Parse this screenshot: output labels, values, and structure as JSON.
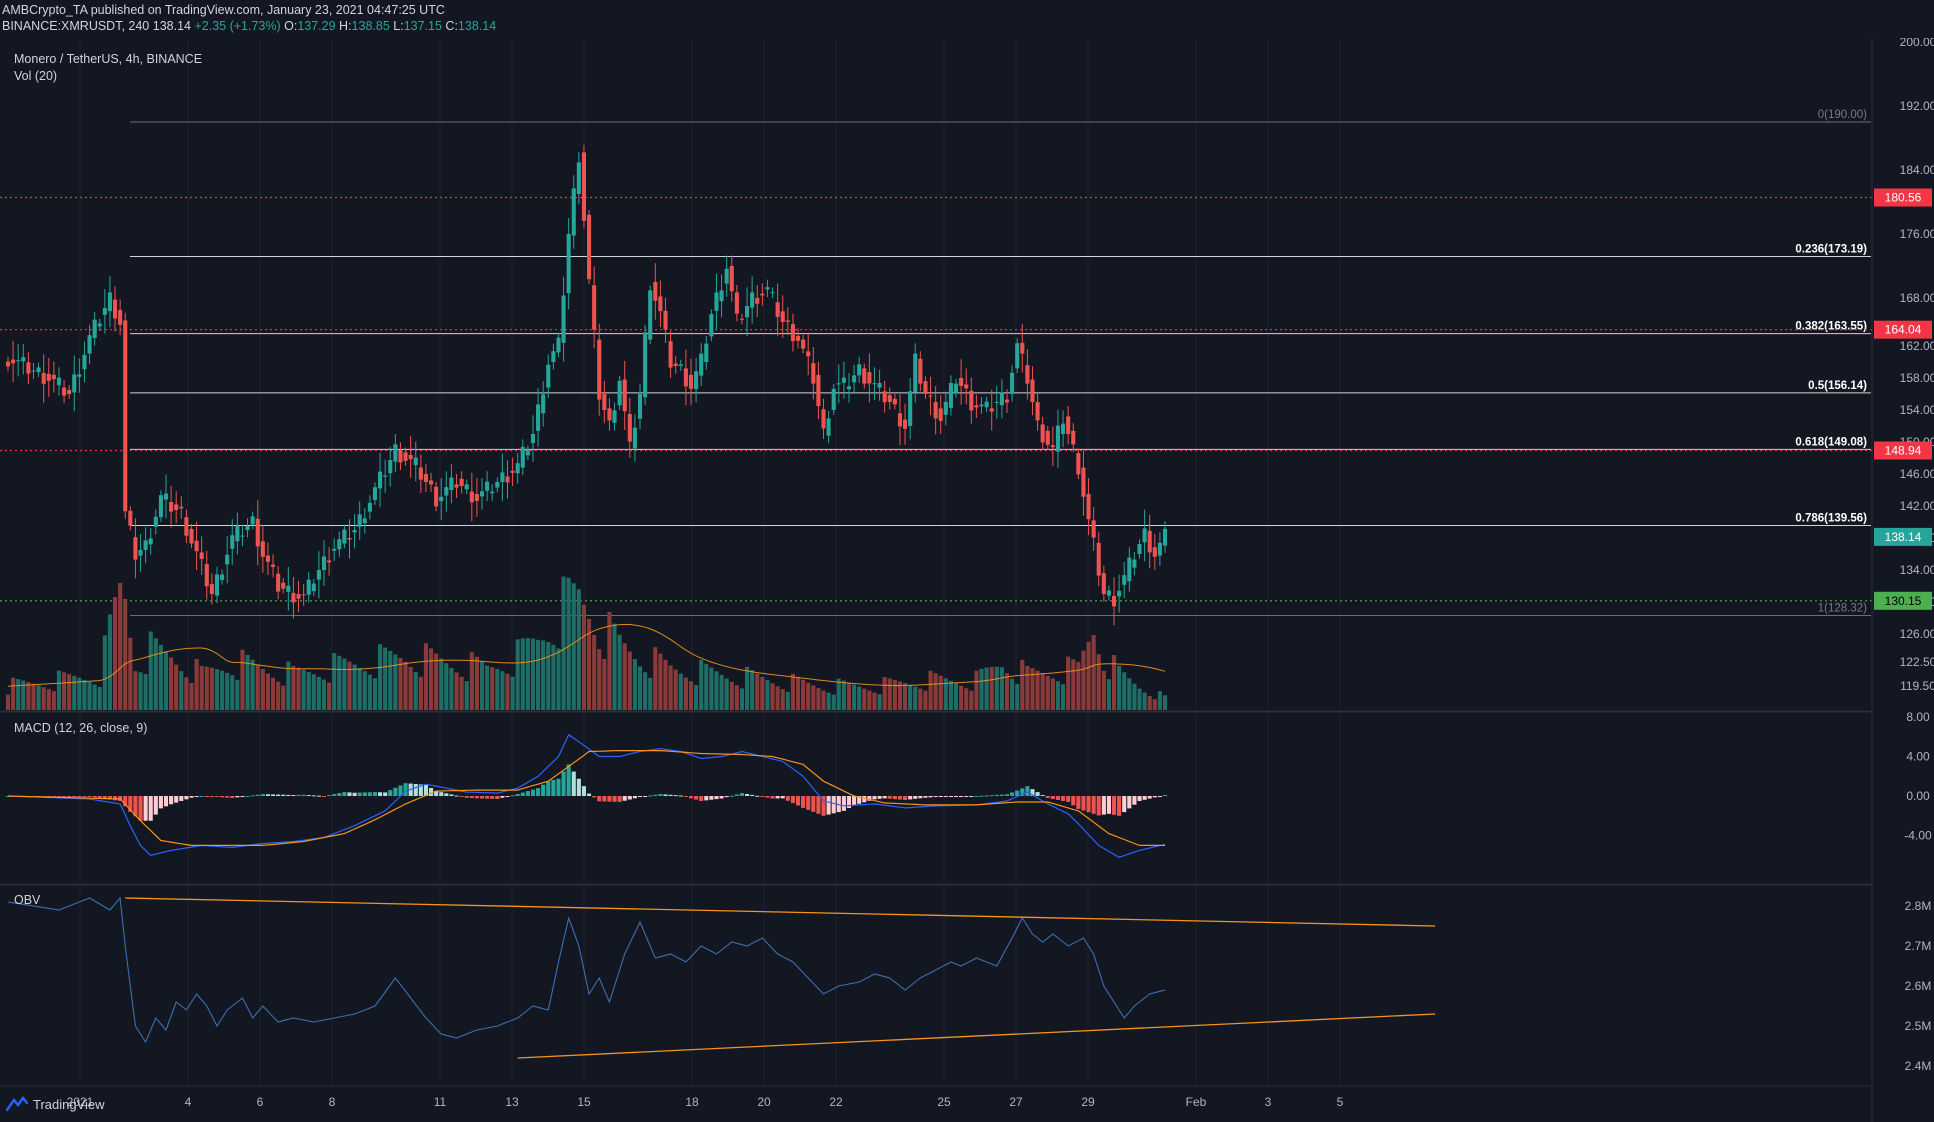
{
  "header": {
    "publisher": "AMBCrypto_TA",
    "published_on": "published on TradingView.com, January 23, 2021 04:47:25 UTC",
    "symbol": "BINANCE:XMRUSDT, 240",
    "last": "138.14",
    "change": "+2.35 (+1.73%)",
    "o_label": "O:",
    "o": "137.29",
    "h_label": "H:",
    "h": "138.85",
    "l_label": "L:",
    "l": "137.15",
    "c_label": "C:",
    "c": "138.14"
  },
  "legend": {
    "main": "Monero / TetherUS, 4h, BINANCE",
    "vol": "Vol (20)",
    "macd": "MACD (12, 26, close, 9)",
    "obv": "OBV"
  },
  "brand": "TradingView",
  "colors": {
    "bg": "#131722",
    "grid": "#1e2230",
    "up": "#26a69a",
    "down": "#ef5350",
    "vol_up": "#1e6e66",
    "vol_down": "#8b3a3a",
    "orange": "#f7931a",
    "blue": "#2962ff",
    "red_level": "#f23645",
    "green_level": "#4caf50",
    "fib": "#b2b5be"
  },
  "chart_data": [
    {
      "type": "candlestick",
      "title": "Monero / TetherUS, 4h, BINANCE",
      "x_axis_ticks": [
        "2021",
        "4",
        "6",
        "8",
        "11",
        "13",
        "15",
        "18",
        "20",
        "22",
        "25",
        "27",
        "29",
        "Feb",
        "3",
        "5"
      ],
      "y_ticks": [
        "200.00",
        "192.00",
        "184.00",
        "176.00",
        "168.00",
        "162.00",
        "158.00",
        "154.00",
        "150.00",
        "146.00",
        "142.00",
        "138.00",
        "134.00",
        "130.00",
        "126.00",
        "122.50",
        "119.50"
      ],
      "ylim": [
        116.5,
        200.5
      ],
      "last_price": "138.14",
      "price_levels": [
        {
          "value": 180.56,
          "label": "180.56",
          "style": "red-dotted"
        },
        {
          "value": 164.04,
          "label": "164.04",
          "style": "red-dotted"
        },
        {
          "value": 148.94,
          "label": "148.94",
          "style": "red-dotted"
        },
        {
          "value": 130.15,
          "label": "130.15",
          "style": "green-dotted"
        }
      ],
      "fibonacci": [
        {
          "ratio": "0",
          "value": 190.0,
          "label": "0(190.00)"
        },
        {
          "ratio": "0.236",
          "value": 173.19,
          "label": "0.236(173.19)"
        },
        {
          "ratio": "0.382",
          "value": 163.55,
          "label": "0.382(163.55)"
        },
        {
          "ratio": "0.5",
          "value": 156.14,
          "label": "0.5(156.14)"
        },
        {
          "ratio": "0.618",
          "value": 149.08,
          "label": "0.618(149.08)"
        },
        {
          "ratio": "0.786",
          "value": 139.56,
          "label": "0.786(139.56)"
        },
        {
          "ratio": "1",
          "value": 128.32,
          "label": "1(128.32)"
        }
      ],
      "close_path": [
        [
          0,
          160.5
        ],
        [
          8,
          158
        ],
        [
          12,
          156
        ],
        [
          16,
          163
        ],
        [
          20,
          168
        ],
        [
          22,
          165
        ],
        [
          23,
          141
        ],
        [
          25,
          136
        ],
        [
          27,
          137
        ],
        [
          30,
          143
        ],
        [
          34,
          141
        ],
        [
          37,
          136
        ],
        [
          40,
          131
        ],
        [
          44,
          138
        ],
        [
          48,
          140
        ],
        [
          50,
          136
        ],
        [
          53,
          132
        ],
        [
          56,
          131
        ],
        [
          58,
          130.5
        ],
        [
          60,
          133
        ],
        [
          64,
          137
        ],
        [
          68,
          139
        ],
        [
          72,
          144
        ],
        [
          76,
          149
        ],
        [
          80,
          147
        ],
        [
          84,
          143
        ],
        [
          88,
          145
        ],
        [
          92,
          143
        ],
        [
          96,
          145
        ],
        [
          100,
          147
        ],
        [
          103,
          151
        ],
        [
          106,
          160
        ],
        [
          108,
          162
        ],
        [
          110,
          176
        ],
        [
          112,
          186
        ],
        [
          114,
          170
        ],
        [
          116,
          156
        ],
        [
          118,
          152
        ],
        [
          120,
          158
        ],
        [
          122,
          149
        ],
        [
          124,
          156
        ],
        [
          126,
          170
        ],
        [
          128,
          166
        ],
        [
          130,
          160
        ],
        [
          132,
          159
        ],
        [
          134,
          157
        ],
        [
          136,
          160
        ],
        [
          138,
          166
        ],
        [
          141,
          172
        ],
        [
          143,
          165
        ],
        [
          146,
          168
        ],
        [
          149,
          169
        ],
        [
          152,
          165
        ],
        [
          155,
          163
        ],
        [
          158,
          158
        ],
        [
          160,
          151
        ],
        [
          162,
          157
        ],
        [
          164,
          157
        ],
        [
          167,
          159
        ],
        [
          170,
          157
        ],
        [
          173,
          155
        ],
        [
          176,
          152
        ],
        [
          178,
          160
        ],
        [
          180,
          156
        ],
        [
          183,
          153
        ],
        [
          186,
          158
        ],
        [
          189,
          155
        ],
        [
          192,
          154
        ],
        [
          196,
          156
        ],
        [
          198,
          162
        ],
        [
          200,
          158
        ],
        [
          202,
          152
        ],
        [
          205,
          149
        ],
        [
          207,
          153
        ],
        [
          210,
          147
        ],
        [
          212,
          140
        ],
        [
          214,
          134
        ],
        [
          215,
          131
        ],
        [
          217,
          130.5
        ],
        [
          219,
          133
        ],
        [
          221,
          136
        ],
        [
          223,
          138.5
        ],
        [
          225,
          136
        ],
        [
          227,
          138.1
        ]
      ],
      "volume_path": [
        [
          0,
          0.2
        ],
        [
          10,
          0.25
        ],
        [
          18,
          0.3
        ],
        [
          22,
          1.0
        ],
        [
          23,
          0.95
        ],
        [
          25,
          0.4
        ],
        [
          28,
          0.5
        ],
        [
          32,
          0.45
        ],
        [
          38,
          0.3
        ],
        [
          44,
          0.4
        ],
        [
          50,
          0.35
        ],
        [
          56,
          0.3
        ],
        [
          62,
          0.35
        ],
        [
          70,
          0.4
        ],
        [
          78,
          0.45
        ],
        [
          86,
          0.4
        ],
        [
          94,
          0.35
        ],
        [
          100,
          0.45
        ],
        [
          104,
          0.6
        ],
        [
          108,
          0.8
        ],
        [
          110,
          0.9
        ],
        [
          112,
          0.95
        ],
        [
          114,
          0.85
        ],
        [
          116,
          0.7
        ],
        [
          120,
          0.55
        ],
        [
          124,
          0.45
        ],
        [
          130,
          0.35
        ],
        [
          140,
          0.3
        ],
        [
          150,
          0.25
        ],
        [
          160,
          0.2
        ],
        [
          170,
          0.2
        ],
        [
          180,
          0.25
        ],
        [
          190,
          0.25
        ],
        [
          195,
          0.4
        ],
        [
          200,
          0.3
        ],
        [
          210,
          0.35
        ],
        [
          213,
          0.7
        ],
        [
          215,
          0.45
        ],
        [
          218,
          0.3
        ],
        [
          222,
          0.2
        ],
        [
          227,
          0.1
        ]
      ],
      "series": [
        {
          "name": "Vol (20)",
          "type": "volume"
        }
      ]
    },
    {
      "type": "line",
      "title": "MACD (12, 26, close, 9)",
      "y_ticks": [
        "8.00",
        "4.00",
        "0.00",
        "-4.00"
      ],
      "ylim": [
        -8.8,
        8.4
      ],
      "macd_path": [
        [
          0,
          0
        ],
        [
          16,
          -0.3
        ],
        [
          22,
          -0.8
        ],
        [
          24,
          -3
        ],
        [
          26,
          -5
        ],
        [
          28,
          -6
        ],
        [
          32,
          -5.5
        ],
        [
          38,
          -5
        ],
        [
          44,
          -5.2
        ],
        [
          50,
          -4.8
        ],
        [
          56,
          -4.6
        ],
        [
          62,
          -4.2
        ],
        [
          68,
          -3
        ],
        [
          74,
          -1.5
        ],
        [
          78,
          0.5
        ],
        [
          82,
          1.2
        ],
        [
          86,
          0.8
        ],
        [
          90,
          0.4
        ],
        [
          96,
          0.3
        ],
        [
          100,
          0.8
        ],
        [
          104,
          2
        ],
        [
          108,
          4
        ],
        [
          110,
          6.2
        ],
        [
          112,
          5.5
        ],
        [
          116,
          4
        ],
        [
          120,
          4
        ],
        [
          124,
          4.5
        ],
        [
          128,
          4.8
        ],
        [
          132,
          4.5
        ],
        [
          136,
          3.8
        ],
        [
          140,
          4
        ],
        [
          144,
          4.5
        ],
        [
          148,
          4
        ],
        [
          152,
          3.5
        ],
        [
          156,
          2
        ],
        [
          160,
          -0.5
        ],
        [
          164,
          -1
        ],
        [
          170,
          -0.8
        ],
        [
          176,
          -1.2
        ],
        [
          182,
          -1
        ],
        [
          190,
          -0.9
        ],
        [
          196,
          -0.5
        ],
        [
          200,
          0.4
        ],
        [
          204,
          -0.8
        ],
        [
          208,
          -1.8
        ],
        [
          210,
          -2.8
        ],
        [
          214,
          -5
        ],
        [
          218,
          -6.2
        ],
        [
          222,
          -5.5
        ],
        [
          227,
          -4.9
        ]
      ],
      "signal_path": [
        [
          0,
          0
        ],
        [
          22,
          -0.3
        ],
        [
          26,
          -2.5
        ],
        [
          30,
          -4.5
        ],
        [
          36,
          -5
        ],
        [
          42,
          -5
        ],
        [
          50,
          -5
        ],
        [
          58,
          -4.6
        ],
        [
          66,
          -3.8
        ],
        [
          72,
          -2.4
        ],
        [
          78,
          -0.8
        ],
        [
          84,
          0.5
        ],
        [
          92,
          0.6
        ],
        [
          100,
          0.6
        ],
        [
          106,
          1.5
        ],
        [
          110,
          3
        ],
        [
          114,
          4.5
        ],
        [
          120,
          4.6
        ],
        [
          128,
          4.6
        ],
        [
          136,
          4.3
        ],
        [
          144,
          4.2
        ],
        [
          150,
          4
        ],
        [
          156,
          3.2
        ],
        [
          160,
          1.5
        ],
        [
          166,
          0
        ],
        [
          172,
          -0.7
        ],
        [
          180,
          -0.9
        ],
        [
          190,
          -0.9
        ],
        [
          198,
          -0.6
        ],
        [
          204,
          -0.6
        ],
        [
          210,
          -1.5
        ],
        [
          216,
          -3.8
        ],
        [
          222,
          -5
        ],
        [
          227,
          -5
        ]
      ],
      "series": [
        {
          "name": "MACD",
          "type": "line"
        },
        {
          "name": "Signal",
          "type": "line"
        },
        {
          "name": "Histogram",
          "type": "bar"
        }
      ]
    },
    {
      "type": "line",
      "title": "OBV",
      "y_ticks": [
        "2.8M",
        "2.7M",
        "2.6M",
        "2.5M",
        "2.4M"
      ],
      "ylim": [
        2.35,
        2.85
      ],
      "obv_path": [
        [
          0,
          2.81
        ],
        [
          10,
          2.79
        ],
        [
          16,
          2.82
        ],
        [
          20,
          2.79
        ],
        [
          22,
          2.82
        ],
        [
          23,
          2.7
        ],
        [
          25,
          2.5
        ],
        [
          27,
          2.46
        ],
        [
          29,
          2.52
        ],
        [
          31,
          2.49
        ],
        [
          33,
          2.56
        ],
        [
          35,
          2.54
        ],
        [
          37,
          2.58
        ],
        [
          39,
          2.55
        ],
        [
          41,
          2.5
        ],
        [
          43,
          2.54
        ],
        [
          46,
          2.57
        ],
        [
          48,
          2.52
        ],
        [
          50,
          2.55
        ],
        [
          53,
          2.51
        ],
        [
          56,
          2.52
        ],
        [
          60,
          2.51
        ],
        [
          64,
          2.52
        ],
        [
          68,
          2.53
        ],
        [
          72,
          2.55
        ],
        [
          76,
          2.62
        ],
        [
          79,
          2.57
        ],
        [
          82,
          2.52
        ],
        [
          85,
          2.48
        ],
        [
          88,
          2.47
        ],
        [
          92,
          2.49
        ],
        [
          96,
          2.5
        ],
        [
          100,
          2.52
        ],
        [
          103,
          2.55
        ],
        [
          106,
          2.54
        ],
        [
          108,
          2.66
        ],
        [
          110,
          2.77
        ],
        [
          112,
          2.7
        ],
        [
          114,
          2.58
        ],
        [
          116,
          2.62
        ],
        [
          118,
          2.56
        ],
        [
          121,
          2.68
        ],
        [
          124,
          2.76
        ],
        [
          127,
          2.67
        ],
        [
          130,
          2.68
        ],
        [
          133,
          2.66
        ],
        [
          136,
          2.7
        ],
        [
          139,
          2.68
        ],
        [
          142,
          2.71
        ],
        [
          145,
          2.7
        ],
        [
          148,
          2.72
        ],
        [
          151,
          2.68
        ],
        [
          154,
          2.66
        ],
        [
          157,
          2.62
        ],
        [
          160,
          2.58
        ],
        [
          163,
          2.6
        ],
        [
          167,
          2.61
        ],
        [
          170,
          2.63
        ],
        [
          173,
          2.62
        ],
        [
          176,
          2.59
        ],
        [
          179,
          2.62
        ],
        [
          182,
          2.64
        ],
        [
          185,
          2.66
        ],
        [
          187,
          2.65
        ],
        [
          190,
          2.67
        ],
        [
          194,
          2.65
        ],
        [
          197,
          2.72
        ],
        [
          199,
          2.77
        ],
        [
          201,
          2.73
        ],
        [
          203,
          2.71
        ],
        [
          205,
          2.73
        ],
        [
          208,
          2.7
        ],
        [
          211,
          2.72
        ],
        [
          213,
          2.68
        ],
        [
          215,
          2.6
        ],
        [
          217,
          2.56
        ],
        [
          219,
          2.52
        ],
        [
          221,
          2.55
        ],
        [
          224,
          2.58
        ],
        [
          227,
          2.59
        ]
      ],
      "trendlines": [
        {
          "from": [
            23,
            2.82
          ],
          "to": [
            280,
            2.75
          ]
        },
        {
          "from": [
            100,
            2.42
          ],
          "to": [
            280,
            2.53
          ]
        }
      ],
      "series": [
        {
          "name": "OBV",
          "type": "line"
        }
      ]
    }
  ]
}
